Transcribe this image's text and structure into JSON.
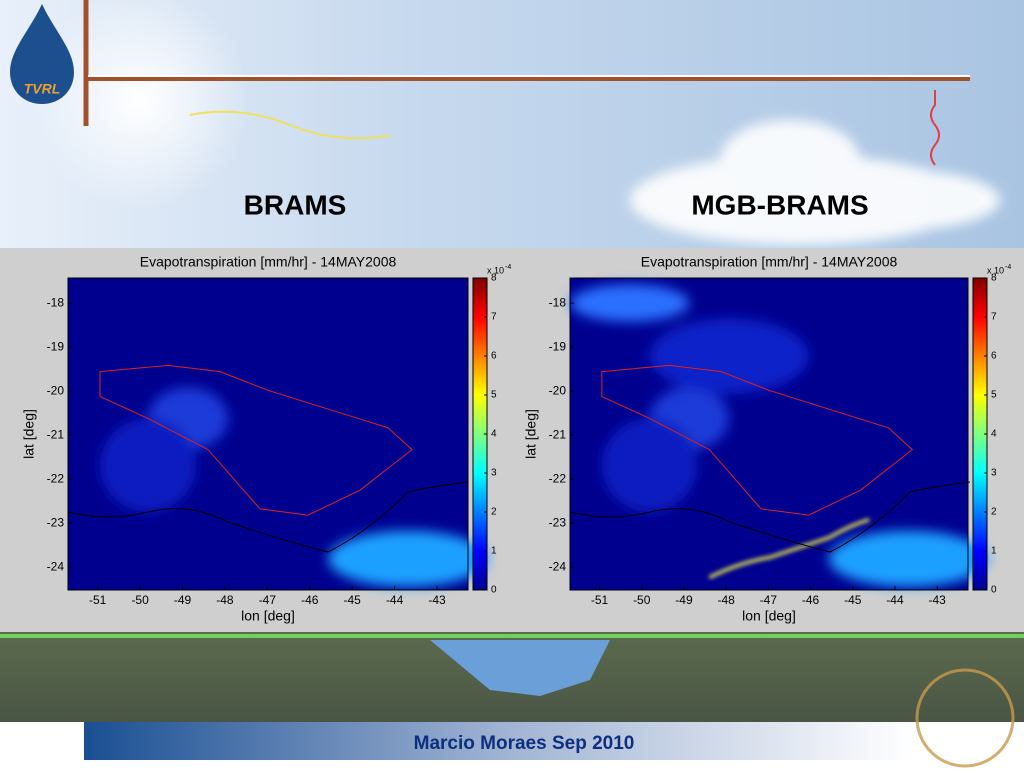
{
  "slide": {
    "logo_text": "TVRL",
    "left_heading": "BRAMS",
    "right_heading": "MGB-BRAMS",
    "footer": "Marcio Moraes Sep 2010",
    "panels": [
      {
        "title": "Evapotranspiration [mm/hr] - 14MAY2008",
        "xlabel": "lon [deg]",
        "ylabel": "lat [deg]",
        "xlim": [
          -51.7,
          -42.27
        ],
        "ylim": [
          -24.52,
          -17.43
        ],
        "xticks": [
          -51,
          -50,
          -49,
          -48,
          -47,
          -46,
          -45,
          -44,
          -43
        ],
        "yticks": [
          -18,
          -19,
          -20,
          -21,
          -22,
          -23,
          -24
        ],
        "colorbar": {
          "lim": [
            0,
            8
          ],
          "ticks": [
            0,
            1,
            2,
            3,
            4,
            5,
            6,
            7,
            8
          ],
          "multiplier": "x 10",
          "exponent": "-4"
        }
      },
      {
        "title": "Evapotranspiration [mm/hr] - 14MAY2008",
        "xlabel": "lon [deg]",
        "ylabel": "lat [deg]",
        "xlim": [
          -51.7,
          -42.27
        ],
        "ylim": [
          -24.52,
          -17.43
        ],
        "xticks": [
          -51,
          -50,
          -49,
          -48,
          -47,
          -46,
          -45,
          -44,
          -43
        ],
        "yticks": [
          -18,
          -19,
          -20,
          -21,
          -22,
          -23,
          -24
        ],
        "colorbar": {
          "lim": [
            0,
            8
          ],
          "ticks": [
            0,
            1,
            2,
            3,
            4,
            5,
            6,
            7,
            8
          ],
          "multiplier": "x 10",
          "exponent": "-4"
        }
      }
    ]
  }
}
